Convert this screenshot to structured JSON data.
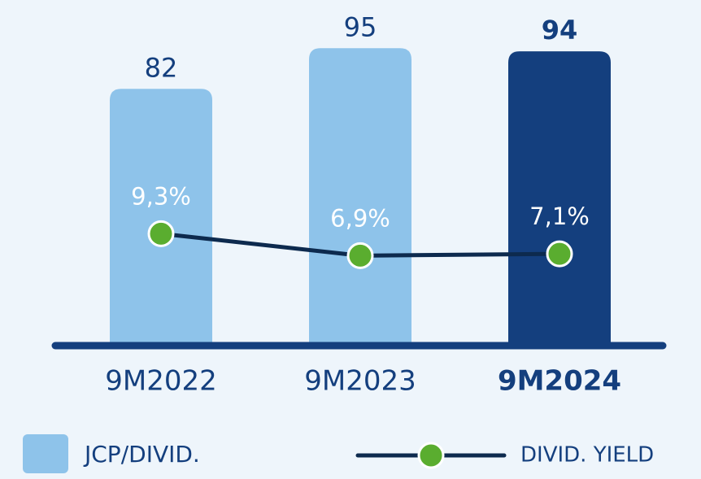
{
  "chart_data": {
    "type": "bar",
    "categories": [
      "9M2022",
      "9M2023",
      "9M2024"
    ],
    "series": [
      {
        "name": "JCP/DIVID.",
        "type": "bar",
        "colors": [
          "#8ec3ea",
          "#8ec3ea",
          "#143f7e"
        ],
        "values": [
          82,
          95,
          94
        ]
      },
      {
        "name": "DIVID. YIELD",
        "type": "line",
        "axis": "y2",
        "color": "#0d2a4e",
        "marker_color": "#5aad2f",
        "values": [
          9.3,
          6.9,
          7.1
        ],
        "value_labels": [
          "9,3%",
          "6,9%",
          "7,1%"
        ]
      }
    ],
    "ylim": [
      0,
      100
    ],
    "y2lim": [
      0,
      10
    ],
    "highlight": 2
  }
}
